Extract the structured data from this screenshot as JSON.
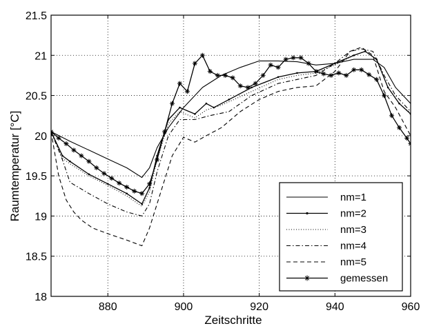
{
  "chart_data": {
    "type": "line",
    "title": "",
    "xlabel": "Zeitschritte",
    "ylabel": "Raumtemperatur [°C]",
    "xlim": [
      865,
      960
    ],
    "ylim": [
      18,
      21.5
    ],
    "xticks": [
      "880",
      "900",
      "920",
      "940",
      "960"
    ],
    "yticks": [
      "18",
      "18.5",
      "19",
      "19.5",
      "20",
      "20.5",
      "21",
      "21.5"
    ],
    "xtick_values": [
      880,
      900,
      920,
      940,
      960
    ],
    "ytick_values": [
      18,
      18.5,
      19,
      19.5,
      20,
      20.5,
      21,
      21.5
    ],
    "grid": true,
    "legend_position": "bottom-right",
    "series": [
      {
        "name": "nm=1",
        "style": "solid",
        "x": [
          865,
          870,
          875,
          880,
          885,
          889,
          891,
          893,
          896,
          900,
          905,
          910,
          915,
          920,
          925,
          930,
          935,
          940,
          945,
          950,
          953,
          956,
          960
        ],
        "y": [
          20.05,
          19.93,
          19.82,
          19.71,
          19.6,
          19.48,
          19.6,
          19.85,
          20.1,
          20.35,
          20.6,
          20.75,
          20.85,
          20.93,
          20.93,
          20.92,
          20.88,
          20.9,
          20.95,
          20.95,
          20.85,
          20.6,
          20.4
        ]
      },
      {
        "name": "nm=2",
        "style": "solid-dot",
        "x": [
          865,
          868,
          870,
          875,
          880,
          885,
          889,
          891,
          893,
          896,
          899,
          903,
          906,
          908,
          912,
          918,
          925,
          930,
          935,
          940,
          945,
          948,
          951,
          954,
          957,
          960
        ],
        "y": [
          20.05,
          19.75,
          19.68,
          19.52,
          19.4,
          19.28,
          19.15,
          19.35,
          19.75,
          20.2,
          20.35,
          20.27,
          20.4,
          20.35,
          20.45,
          20.6,
          20.73,
          20.78,
          20.8,
          20.9,
          21.0,
          21.05,
          20.95,
          20.6,
          20.4,
          20.27
        ]
      },
      {
        "name": "nm=3",
        "style": "dotted",
        "x": [
          865,
          868,
          870,
          875,
          880,
          885,
          889,
          891,
          893,
          896,
          899,
          903,
          906,
          910,
          918,
          925,
          930,
          935,
          940,
          945,
          948,
          951,
          954,
          957,
          960
        ],
        "y": [
          20.05,
          19.72,
          19.65,
          19.5,
          19.38,
          19.25,
          19.12,
          19.3,
          19.7,
          20.15,
          20.3,
          20.22,
          20.32,
          20.38,
          20.55,
          20.7,
          20.75,
          20.78,
          20.88,
          21.0,
          21.05,
          20.95,
          20.6,
          20.4,
          20.28
        ]
      },
      {
        "name": "nm=4",
        "style": "dashdot",
        "x": [
          865,
          868,
          870,
          875,
          880,
          885,
          889,
          891,
          893,
          896,
          899,
          903,
          907,
          912,
          918,
          925,
          930,
          935,
          940,
          944,
          947,
          950,
          953,
          956,
          960
        ],
        "y": [
          20.05,
          19.7,
          19.42,
          19.28,
          19.15,
          19.05,
          19.0,
          19.15,
          19.55,
          20.0,
          20.2,
          20.2,
          20.25,
          20.3,
          20.5,
          20.65,
          20.7,
          20.75,
          20.9,
          21.05,
          21.08,
          21.05,
          20.75,
          20.5,
          20.3
        ]
      },
      {
        "name": "nm=5",
        "style": "dashed",
        "x": [
          865,
          867,
          869,
          871,
          873,
          876,
          880,
          885,
          889,
          891,
          894,
          897,
          900,
          903,
          906,
          910,
          915,
          920,
          925,
          930,
          935,
          940,
          944,
          947,
          950,
          953,
          956,
          960
        ],
        "y": [
          20.05,
          19.5,
          19.2,
          19.05,
          18.95,
          18.85,
          18.78,
          18.7,
          18.63,
          18.85,
          19.3,
          19.75,
          19.98,
          19.92,
          20.0,
          20.1,
          20.3,
          20.45,
          20.55,
          20.6,
          20.62,
          20.8,
          21.05,
          21.1,
          21.0,
          20.55,
          20.35,
          20.0
        ]
      },
      {
        "name": "gemessen",
        "style": "solid-star",
        "x": [
          865,
          867,
          869,
          871,
          873,
          875,
          877,
          879,
          881,
          883,
          885,
          887,
          889,
          891,
          893,
          895,
          897,
          899,
          901,
          903,
          905,
          907,
          909,
          911,
          913,
          915,
          917,
          919,
          921,
          923,
          925,
          927,
          929,
          931,
          933,
          935,
          937,
          939,
          941,
          943,
          945,
          947,
          949,
          951,
          953,
          955,
          957,
          959,
          960
        ],
        "y": [
          20.05,
          19.97,
          19.9,
          19.82,
          19.75,
          19.68,
          19.6,
          19.53,
          19.47,
          19.41,
          19.36,
          19.31,
          19.28,
          19.4,
          19.7,
          20.05,
          20.4,
          20.65,
          20.55,
          20.9,
          21.0,
          20.8,
          20.75,
          20.75,
          20.72,
          20.62,
          20.6,
          20.65,
          20.75,
          20.88,
          20.85,
          20.95,
          20.97,
          20.97,
          20.9,
          20.8,
          20.77,
          20.75,
          20.78,
          20.75,
          20.82,
          20.82,
          20.76,
          20.7,
          20.5,
          20.25,
          20.1,
          19.97,
          19.9
        ]
      }
    ]
  },
  "colors": {
    "axis": "#000000",
    "grid": "#000000",
    "series": "#000000"
  }
}
